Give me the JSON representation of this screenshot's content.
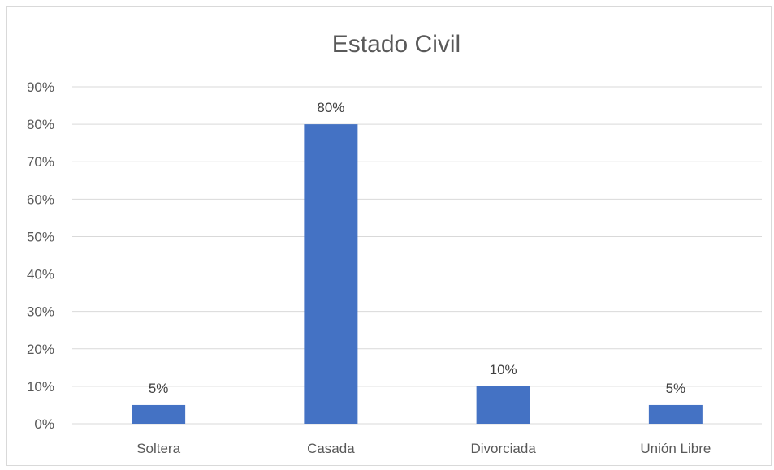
{
  "chart_data": {
    "type": "bar",
    "title": "Estado Civil",
    "categories": [
      "Soltera",
      "Casada",
      "Divorciada",
      "Unión Libre"
    ],
    "values": [
      5,
      80,
      10,
      5
    ],
    "value_labels": [
      "5%",
      "80%",
      "10%",
      "5%"
    ],
    "y_ticks": [
      "0%",
      "10%",
      "20%",
      "30%",
      "40%",
      "50%",
      "60%",
      "70%",
      "80%",
      "90%"
    ],
    "ylim": [
      0,
      90
    ],
    "grid": true,
    "legend": "none",
    "bar_color": "#4472c4"
  }
}
